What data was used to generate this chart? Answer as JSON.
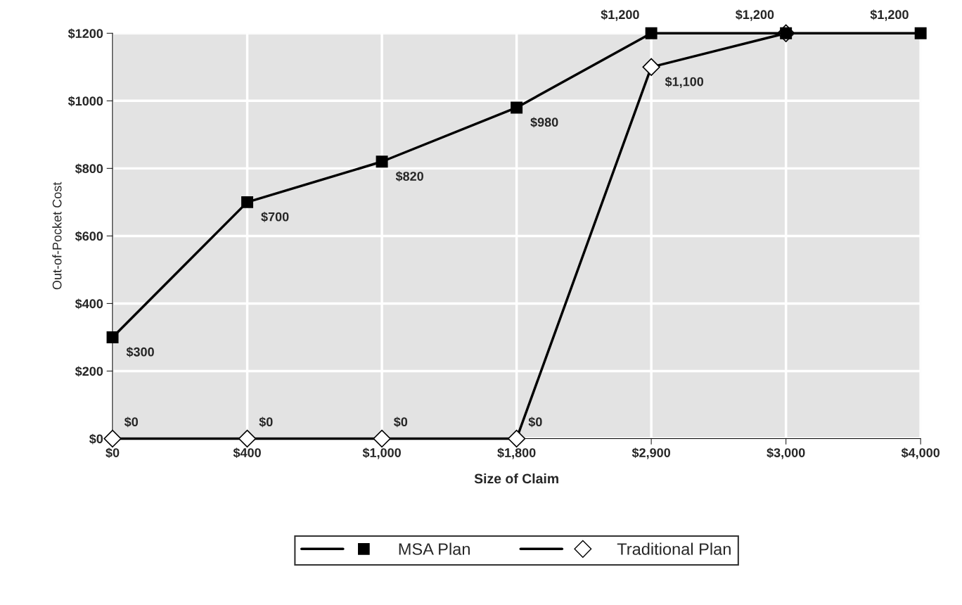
{
  "chart_data": {
    "type": "line",
    "xlabel": "Size of Claim",
    "ylabel": "Out-of-Pocket Cost",
    "categories": [
      "$0",
      "$400",
      "$1,000",
      "$1,800",
      "$2,900",
      "$3,000",
      "$4,000"
    ],
    "series": [
      {
        "name": "MSA Plan",
        "color": "#000000",
        "marker": "square",
        "values": [
          300,
          700,
          820,
          980,
          1200,
          1200,
          1200
        ],
        "value_labels": [
          "$300",
          "$700",
          "$820",
          "$980",
          "$1,200",
          "$1,200",
          "$1,200"
        ]
      },
      {
        "name": "Traditional Plan",
        "color": "#000000",
        "marker": "diamond",
        "values": [
          0,
          0,
          0,
          0,
          1100,
          1200,
          null
        ],
        "value_labels": [
          "$0",
          "$0",
          "$0",
          "$0",
          "$1,100",
          null,
          null
        ]
      }
    ],
    "ylim": [
      0,
      1200
    ],
    "yticks": [
      {
        "value": 0,
        "label": "$0"
      },
      {
        "value": 200,
        "label": "$200"
      },
      {
        "value": 400,
        "label": "$400"
      },
      {
        "value": 600,
        "label": "$600"
      },
      {
        "value": 800,
        "label": "$800"
      },
      {
        "value": 1000,
        "label": "$1000"
      },
      {
        "value": 1200,
        "label": "$1200"
      }
    ],
    "grid": true,
    "legend": "bottom",
    "line_style": "solid"
  }
}
